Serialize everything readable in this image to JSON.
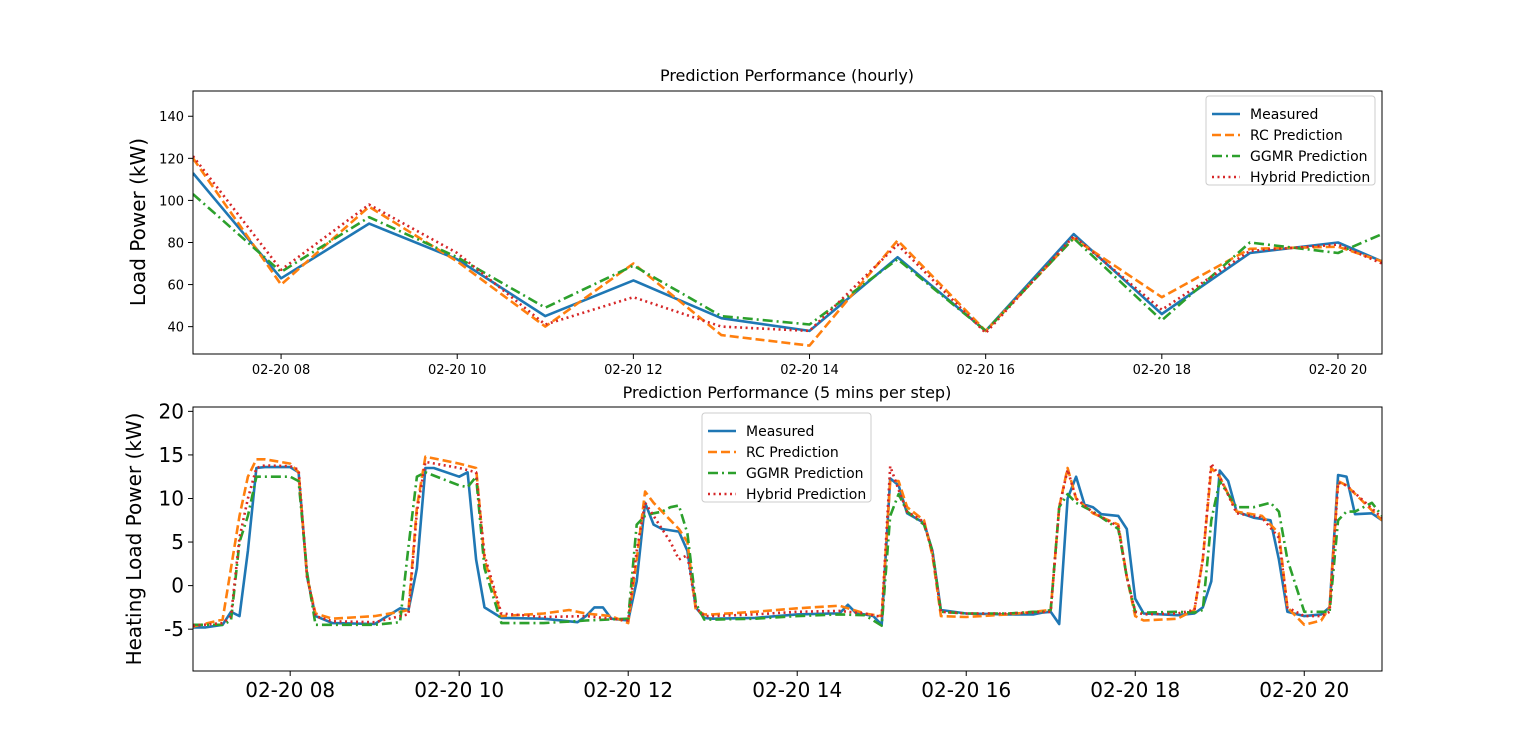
{
  "colors": {
    "measured": "#1f77b4",
    "rc": "#ff7f0e",
    "ggmr": "#2ca02c",
    "hybrid": "#d62728"
  },
  "chart_data": [
    {
      "type": "line",
      "title": "Prediction Performance (hourly)",
      "xlabel": "",
      "ylabel": "Load Power (kW)",
      "x_unit": "hours (time of day, 2020-02-20)",
      "xlim": [
        7.0,
        20.5
      ],
      "ylim": [
        27,
        152
      ],
      "xticks": [
        8,
        10,
        12,
        14,
        16,
        18,
        20
      ],
      "xtick_labels": [
        "02-20 08",
        "02-20 10",
        "02-20 12",
        "02-20 14",
        "02-20 16",
        "02-20 18",
        "02-20 20"
      ],
      "yticks": [
        40,
        60,
        80,
        100,
        120,
        140
      ],
      "legend_loc": "upper right",
      "x": [
        7,
        8,
        9,
        10,
        11,
        12,
        13,
        14,
        15,
        16,
        17,
        18,
        19,
        20,
        20.5
      ],
      "series": [
        {
          "name": "Measured",
          "color_key": "measured",
          "dash": "solid",
          "values": [
            113,
            63,
            89,
            72,
            45,
            62,
            44,
            38,
            73,
            38,
            84,
            46,
            75,
            80,
            71
          ]
        },
        {
          "name": "RC Prediction",
          "color_key": "rc",
          "dash": "dashed",
          "values": [
            120,
            60,
            97,
            71,
            40,
            70,
            36,
            31,
            81,
            38,
            82,
            54,
            77,
            78,
            71
          ]
        },
        {
          "name": "GGMR Prediction",
          "color_key": "ggmr",
          "dash": "dashdot",
          "values": [
            103,
            66,
            92,
            73,
            49,
            69,
            45,
            41,
            72,
            38,
            82,
            43,
            80,
            75,
            84
          ]
        },
        {
          "name": "Hybrid Prediction",
          "color_key": "hybrid",
          "dash": "dotted",
          "values": [
            121,
            67,
            98,
            75,
            41,
            54,
            40,
            38,
            79,
            37,
            83,
            48,
            76,
            79,
            70
          ]
        }
      ]
    },
    {
      "type": "line",
      "title": "Prediction Performance (5 mins per step)",
      "xlabel": "",
      "ylabel": "Heating Load Power (kW)",
      "x_unit": "hours (time of day, 2020-02-20)",
      "xlim": [
        6.85,
        20.92
      ],
      "ylim": [
        -9.8,
        20.5
      ],
      "xticks": [
        8,
        10,
        12,
        14,
        16,
        18,
        20
      ],
      "xtick_labels": [
        "02-20 08",
        "02-20 10",
        "02-20 12",
        "02-20 14",
        "02-20 16",
        "02-20 18",
        "02-20 20"
      ],
      "yticks": [
        -5,
        0,
        5,
        10,
        15,
        20
      ],
      "legend_loc": "upper center",
      "series": [
        {
          "name": "Measured",
          "color_key": "measured",
          "dash": "solid",
          "x": [
            6.85,
            7.0,
            7.2,
            7.3,
            7.4,
            7.5,
            7.6,
            7.7,
            8.0,
            8.1,
            8.2,
            8.3,
            8.5,
            9.0,
            9.3,
            9.4,
            9.5,
            9.6,
            9.7,
            10.0,
            10.1,
            10.2,
            10.3,
            10.5,
            11.0,
            11.4,
            11.5,
            11.6,
            11.7,
            11.8,
            12.0,
            12.1,
            12.2,
            12.3,
            12.4,
            12.6,
            12.7,
            12.8,
            12.9,
            13.0,
            13.5,
            14.0,
            14.4,
            14.5,
            14.6,
            14.7,
            14.8,
            14.9,
            15.0,
            15.1,
            15.2,
            15.3,
            15.5,
            15.6,
            15.7,
            16.0,
            16.5,
            16.8,
            16.9,
            17.0,
            17.1,
            17.2,
            17.3,
            17.4,
            17.5,
            17.6,
            17.8,
            17.9,
            18.0,
            18.1,
            18.5,
            18.7,
            18.8,
            18.9,
            19.0,
            19.1,
            19.2,
            19.4,
            19.6,
            19.7,
            19.8,
            20.0,
            20.2,
            20.3,
            20.4,
            20.5,
            20.6,
            20.8,
            20.92
          ],
          "values": [
            -4.8,
            -4.8,
            -4.5,
            -3.0,
            -3.5,
            4.0,
            13.5,
            13.6,
            13.6,
            13.0,
            1.0,
            -3.5,
            -4.3,
            -4.4,
            -2.6,
            -2.8,
            2.0,
            13.5,
            13.5,
            12.5,
            13.0,
            3.0,
            -2.5,
            -3.7,
            -3.8,
            -4.2,
            -3.5,
            -2.5,
            -2.5,
            -3.8,
            -4.0,
            0.5,
            9.5,
            7.0,
            6.5,
            6.2,
            4.0,
            -2.5,
            -3.7,
            -3.8,
            -3.7,
            -3.3,
            -3.2,
            -3.2,
            -2.2,
            -3.2,
            -3.3,
            -3.5,
            -4.5,
            12.3,
            11.5,
            8.3,
            7.2,
            4.0,
            -2.8,
            -3.2,
            -3.3,
            -3.3,
            -3.1,
            -3.0,
            -4.4,
            10.0,
            12.5,
            9.3,
            9.0,
            8.2,
            8.0,
            6.5,
            -1.5,
            -3.2,
            -3.4,
            -3.2,
            -2.5,
            0.5,
            13.2,
            12.0,
            8.5,
            7.8,
            7.5,
            3.0,
            -3.0,
            -3.5,
            -3.3,
            -2.5,
            12.7,
            12.5,
            8.2,
            8.3,
            7.5
          ]
        },
        {
          "name": "RC Prediction",
          "color_key": "rc",
          "dash": "dashed",
          "x": [
            6.85,
            7.2,
            7.4,
            7.5,
            7.6,
            7.7,
            8.0,
            8.1,
            8.2,
            8.3,
            8.5,
            9.0,
            9.3,
            9.4,
            9.5,
            9.6,
            10.0,
            10.2,
            10.3,
            10.5,
            11.0,
            11.3,
            11.5,
            11.8,
            12.0,
            12.1,
            12.2,
            12.3,
            12.6,
            12.7,
            12.8,
            12.9,
            13.0,
            13.5,
            14.0,
            14.5,
            14.8,
            15.0,
            15.1,
            15.2,
            15.3,
            15.5,
            15.6,
            15.7,
            16.0,
            16.5,
            17.0,
            17.1,
            17.2,
            17.3,
            17.5,
            17.8,
            17.9,
            18.0,
            18.1,
            18.5,
            18.7,
            18.8,
            18.9,
            19.0,
            19.2,
            19.5,
            19.7,
            19.8,
            20.0,
            20.2,
            20.3,
            20.4,
            20.5,
            20.92
          ],
          "values": [
            -4.7,
            -3.9,
            8.0,
            12.5,
            14.5,
            14.5,
            14.0,
            13.0,
            1.0,
            -3.2,
            -3.8,
            -3.5,
            -3.0,
            -2.8,
            9.0,
            14.8,
            14.0,
            13.5,
            3.0,
            -3.5,
            -3.2,
            -2.8,
            -3.2,
            -3.5,
            -4.3,
            3.0,
            10.8,
            9.5,
            6.5,
            5.0,
            -2.8,
            -3.3,
            -3.3,
            -3.0,
            -2.6,
            -2.3,
            -3.2,
            -3.5,
            12.0,
            12.0,
            9.0,
            7.5,
            3.5,
            -3.5,
            -3.6,
            -3.3,
            -2.8,
            9.0,
            13.5,
            10.0,
            8.3,
            7.0,
            1.0,
            -3.5,
            -4.0,
            -3.8,
            -2.8,
            3.0,
            13.5,
            12.5,
            8.5,
            8.0,
            6.0,
            -2.5,
            -4.5,
            -4.0,
            -2.5,
            12.0,
            11.5,
            7.5
          ]
        },
        {
          "name": "GGMR Prediction",
          "color_key": "ggmr",
          "dash": "dashdot",
          "x": [
            6.85,
            7.2,
            7.3,
            7.4,
            7.5,
            7.6,
            7.7,
            8.0,
            8.1,
            8.2,
            8.3,
            8.5,
            9.0,
            9.3,
            9.4,
            9.5,
            9.6,
            10.0,
            10.1,
            10.2,
            10.3,
            10.5,
            11.0,
            11.5,
            12.0,
            12.1,
            12.2,
            12.3,
            12.4,
            12.5,
            12.6,
            12.7,
            12.8,
            12.9,
            13.0,
            13.5,
            14.0,
            14.5,
            14.8,
            15.0,
            15.1,
            15.2,
            15.3,
            15.5,
            15.6,
            15.7,
            16.0,
            16.5,
            16.8,
            16.9,
            17.0,
            17.1,
            17.2,
            17.3,
            17.5,
            17.8,
            17.9,
            18.0,
            18.1,
            18.5,
            18.7,
            18.8,
            18.9,
            19.0,
            19.2,
            19.4,
            19.6,
            19.7,
            19.8,
            20.0,
            20.2,
            20.3,
            20.4,
            20.5,
            20.6,
            20.8,
            20.92
          ],
          "values": [
            -4.5,
            -4.5,
            -4.0,
            5.0,
            8.0,
            12.5,
            12.5,
            12.5,
            12.0,
            1.5,
            -4.5,
            -4.5,
            -4.5,
            -4.2,
            4.5,
            12.5,
            13.0,
            11.5,
            11.3,
            12.5,
            2.0,
            -4.3,
            -4.3,
            -4.0,
            -3.8,
            7.0,
            8.0,
            8.3,
            8.5,
            9.0,
            9.2,
            6.0,
            -2.0,
            -3.9,
            -3.9,
            -3.8,
            -3.5,
            -3.3,
            -3.4,
            -4.6,
            8.0,
            10.5,
            8.5,
            7.0,
            4.0,
            -3.0,
            -3.2,
            -3.2,
            -3.0,
            -3.0,
            -2.8,
            9.0,
            10.5,
            9.5,
            8.5,
            6.5,
            1.0,
            -3.0,
            -3.1,
            -3.0,
            -3.1,
            -2.8,
            7.5,
            12.0,
            9.0,
            9.0,
            9.5,
            8.5,
            3.0,
            -3.0,
            -3.0,
            -3.0,
            7.5,
            8.5,
            8.5,
            9.5,
            8.0
          ]
        },
        {
          "name": "Hybrid Prediction",
          "color_key": "hybrid",
          "dash": "dotted",
          "x": [
            6.85,
            7.2,
            7.3,
            7.4,
            7.5,
            7.6,
            7.7,
            8.0,
            8.1,
            8.2,
            8.3,
            8.5,
            9.0,
            9.3,
            9.4,
            9.5,
            9.6,
            10.0,
            10.2,
            10.3,
            10.5,
            11.0,
            11.5,
            12.0,
            12.1,
            12.2,
            12.3,
            12.4,
            12.5,
            12.6,
            12.7,
            12.8,
            12.9,
            13.0,
            13.5,
            14.0,
            14.5,
            14.8,
            15.0,
            15.1,
            15.2,
            15.3,
            15.5,
            15.6,
            15.7,
            16.0,
            16.5,
            17.0,
            17.1,
            17.2,
            17.3,
            17.5,
            17.8,
            17.9,
            18.0,
            18.1,
            18.5,
            18.7,
            18.8,
            18.9,
            19.0,
            19.2,
            19.5,
            19.7,
            19.8,
            20.0,
            20.2,
            20.3,
            20.4,
            20.5,
            20.92
          ],
          "values": [
            -4.6,
            -4.3,
            -3.5,
            5.5,
            10.0,
            13.5,
            13.8,
            13.7,
            13.3,
            1.0,
            -3.5,
            -4.1,
            -4.2,
            -3.5,
            -3.3,
            8.5,
            14.2,
            13.5,
            13.0,
            3.5,
            -3.2,
            -3.6,
            -3.5,
            -4.0,
            4.0,
            9.5,
            8.0,
            6.5,
            5.0,
            3.0,
            3.5,
            -2.5,
            -3.5,
            -3.5,
            -3.3,
            -3.0,
            -2.9,
            -3.2,
            -3.6,
            13.7,
            11.0,
            8.5,
            7.3,
            3.8,
            -3.0,
            -3.2,
            -3.2,
            -3.0,
            9.0,
            13.3,
            10.0,
            8.4,
            6.8,
            1.0,
            -3.0,
            -3.3,
            -3.2,
            -2.8,
            3.0,
            14.0,
            12.5,
            8.3,
            7.8,
            5.5,
            -2.5,
            -3.5,
            -3.5,
            -3.0,
            11.8,
            11.5,
            7.8
          ]
        }
      ]
    }
  ]
}
